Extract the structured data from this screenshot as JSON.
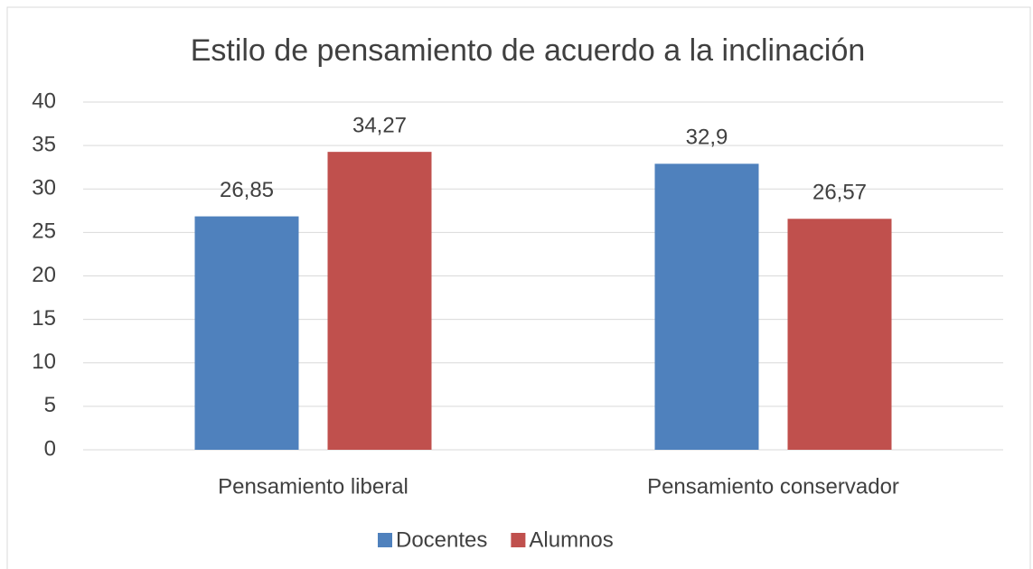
{
  "chart_data": {
    "type": "bar",
    "title": "Estilo de pensamiento de acuerdo a la inclinación",
    "categories": [
      "Pensamiento liberal",
      "Pensamiento conservador"
    ],
    "series": [
      {
        "name": "Docentes",
        "color": "#4f81bd",
        "values": [
          26.85,
          32.9
        ],
        "value_labels": [
          "26,85",
          "32,9"
        ]
      },
      {
        "name": "Alumnos",
        "color": "#c0504d",
        "values": [
          34.27,
          26.57
        ],
        "value_labels": [
          "34,27",
          "26,57"
        ]
      }
    ],
    "ylim": [
      0,
      40
    ],
    "yticks": [
      0,
      5,
      10,
      15,
      20,
      25,
      30,
      35,
      40
    ],
    "grid": true,
    "legend": "bottom"
  }
}
